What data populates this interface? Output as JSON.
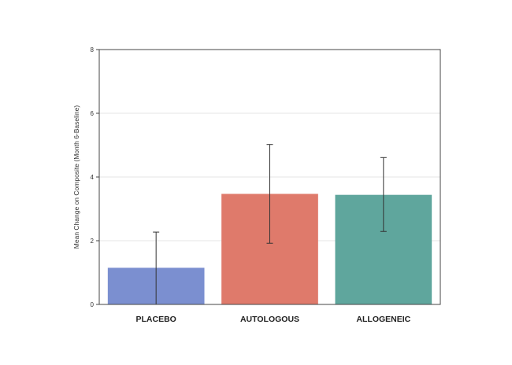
{
  "chart_data": {
    "type": "bar",
    "title": "",
    "xlabel": "",
    "ylabel": "Mean Change on Composite (Month 6-Baseline)",
    "ylim": [
      0,
      8
    ],
    "yticks": [
      0,
      2,
      4,
      6,
      8
    ],
    "grid": true,
    "legend": "none",
    "categories": [
      "PLACEBO",
      "AUTOLOGOUS",
      "ALLOGENEIC"
    ],
    "values": [
      1.15,
      3.47,
      3.44
    ],
    "error_upper": [
      2.27,
      5.02,
      4.61
    ],
    "error_lower": [
      0.0,
      1.92,
      2.29
    ],
    "colors": [
      "#7b8fd0",
      "#df7a6b",
      "#5fa69d"
    ]
  }
}
